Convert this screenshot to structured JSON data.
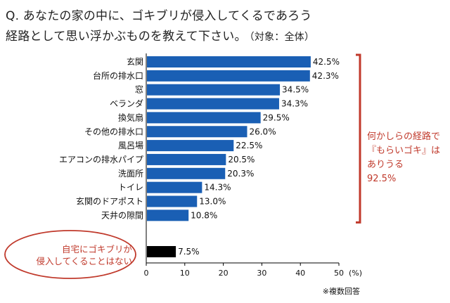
{
  "question": {
    "line1": "Q. あなたの家の中に、ゴキブリが侵入してくるであろう",
    "line2": "経路として思い浮かぶものを教えて下さい。",
    "scope": "（対象：全体）"
  },
  "chart_data": {
    "type": "bar",
    "orientation": "horizontal",
    "categories": [
      "玄関",
      "台所の排水口",
      "窓",
      "ベランダ",
      "換気扇",
      "その他の排水口",
      "風呂場",
      "エアコンの排水パイプ",
      "洗面所",
      "トイレ",
      "玄関のドアポスト",
      "天井の隙間",
      "自宅にゴキブリが侵入してくることはない"
    ],
    "values": [
      42.5,
      42.3,
      34.5,
      34.3,
      29.5,
      26.0,
      22.5,
      20.5,
      20.3,
      14.3,
      13.0,
      10.8,
      7.5
    ],
    "value_labels": [
      "42.5%",
      "42.3%",
      "34.5%",
      "34.3%",
      "29.5%",
      "26.0%",
      "22.5%",
      "20.5%",
      "20.3%",
      "14.3%",
      "13.0%",
      "10.8%",
      "7.5%"
    ],
    "oval_label_lines": [
      "自宅にゴキブリが",
      "侵入してくることはない"
    ],
    "xlim": [
      0,
      50
    ],
    "xticks": [
      "0",
      "10",
      "20",
      "30",
      "40",
      "50"
    ],
    "xunit": "(%)",
    "grid": false,
    "colors": {
      "bar": "#1a5fb4",
      "bar_last": "#000000",
      "annotation": "#c0392b"
    }
  },
  "bracket_note": {
    "lines": [
      "何かしらの経路で",
      "『もらいゴキ』は",
      "ありうる",
      "92.5%"
    ]
  },
  "footnote": "※複数回答"
}
